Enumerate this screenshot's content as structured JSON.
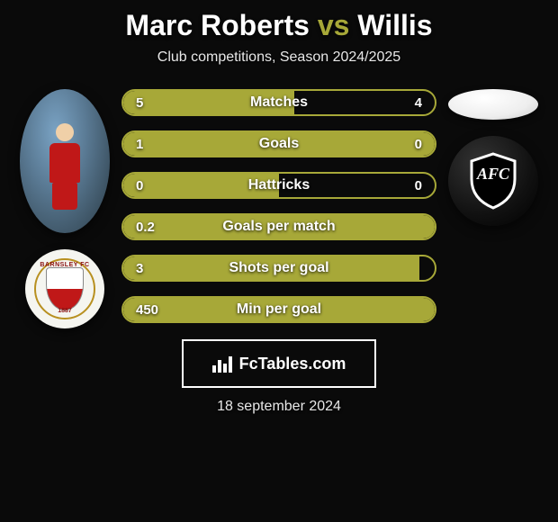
{
  "title": {
    "player1": "Marc Roberts",
    "vs": "vs",
    "player2": "Willis",
    "player1_color": "#ffffff",
    "vs_color": "#a7a838",
    "player2_color": "#ffffff",
    "fontsize": 32
  },
  "subtitle": "Club competitions, Season 2024/2025",
  "colors": {
    "background": "#0a0a0a",
    "bar_fill": "#a7a838",
    "bar_border": "#a7a838",
    "text": "#ffffff",
    "subtext": "#e8e8e8"
  },
  "player1": {
    "badge_top": "BARNSLEY FC",
    "badge_year": "1887"
  },
  "bars": [
    {
      "label": "Matches",
      "left": "5",
      "right": "4",
      "fill_pct": 55
    },
    {
      "label": "Goals",
      "left": "1",
      "right": "0",
      "fill_pct": 100
    },
    {
      "label": "Hattricks",
      "left": "0",
      "right": "0",
      "fill_pct": 50
    },
    {
      "label": "Goals per match",
      "left": "0.2",
      "right": "",
      "fill_pct": 100
    },
    {
      "label": "Shots per goal",
      "left": "3",
      "right": "",
      "fill_pct": 95
    },
    {
      "label": "Min per goal",
      "left": "450",
      "right": "",
      "fill_pct": 100
    }
  ],
  "bar_style": {
    "height": 30,
    "border_radius": 16,
    "border_width": 2,
    "gap": 16,
    "label_fontsize": 16,
    "value_fontsize": 15
  },
  "brand": "FcTables.com",
  "date": "18 september 2024"
}
